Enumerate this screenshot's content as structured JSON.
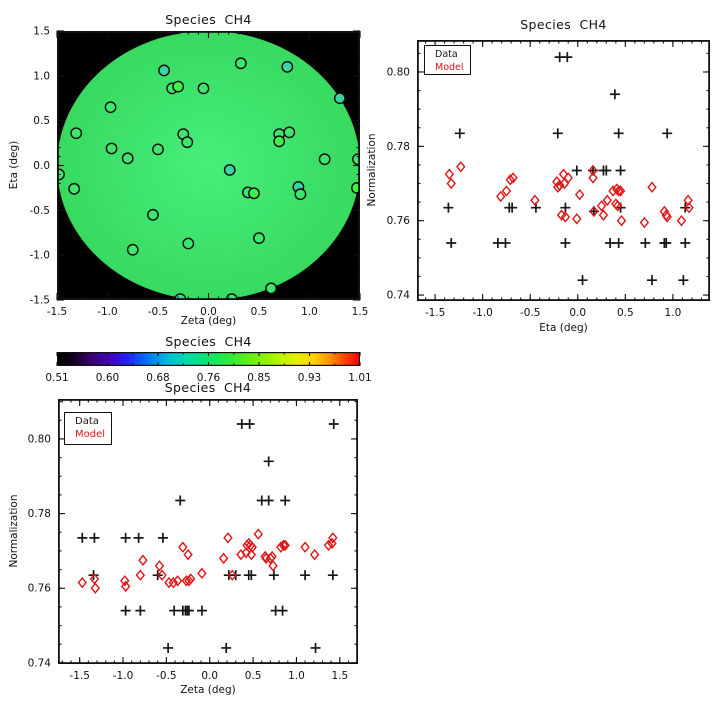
{
  "colors": {
    "axis": "#111111",
    "data_marker": "#161616",
    "model_marker": "#e01414",
    "disk_bg": "#000000",
    "bg": "#3fe56c",
    "teal": "#3cd3a8",
    "bright": "#41f148",
    "disk_inner": "#47ee7a",
    "disk_outer": "#38da60"
  },
  "chart_data": [
    {
      "id": "disk-map",
      "type": "disk_map",
      "title": "Species CH4",
      "xlabel": "Zeta (deg)",
      "ylabel": "Eta (deg)",
      "xlim": [
        -1.5,
        1.5
      ],
      "ylim": [
        -1.5,
        1.5
      ],
      "xticks": {
        "vals": [
          -1.5,
          -1,
          -0.5,
          0,
          0.5,
          1,
          1.5
        ],
        "labels": [
          "-1.5",
          "-1.0",
          "-0.5",
          "0.0",
          "0.5",
          "1.0",
          "1.5"
        ],
        "minor": 0.1
      },
      "yticks": {
        "vals": [
          -1.5,
          -1,
          -0.5,
          0,
          0.5,
          1,
          1.5
        ],
        "labels": [
          "-1.5",
          "-1.0",
          "-0.5",
          "0.0",
          "0.5",
          "1.0",
          "1.5"
        ],
        "minor": 0.1
      },
      "grid": false,
      "disk": {
        "radius": 1.5,
        "inner": "#47ee7a",
        "outer": "#38da60"
      },
      "points": [
        {
          "x": -0.44,
          "y": 1.06,
          "c": "teal"
        },
        {
          "x": -0.36,
          "y": 0.86,
          "c": "bg"
        },
        {
          "x": -0.3,
          "y": 0.88,
          "c": "bright"
        },
        {
          "x": -0.05,
          "y": 0.86,
          "c": "bg"
        },
        {
          "x": 0.32,
          "y": 1.14,
          "c": "bg"
        },
        {
          "x": 0.78,
          "y": 1.1,
          "c": "teal"
        },
        {
          "x": 1.3,
          "y": 0.75,
          "c": "teal"
        },
        {
          "x": -0.97,
          "y": 0.65,
          "c": "bg"
        },
        {
          "x": -1.31,
          "y": 0.36,
          "c": "bg"
        },
        {
          "x": -0.96,
          "y": 0.19,
          "c": "bg"
        },
        {
          "x": -0.8,
          "y": 0.08,
          "c": "bg"
        },
        {
          "x": -0.5,
          "y": 0.18,
          "c": "bg"
        },
        {
          "x": -0.25,
          "y": 0.35,
          "c": "bg"
        },
        {
          "x": -0.21,
          "y": 0.26,
          "c": "bg"
        },
        {
          "x": 0.7,
          "y": 0.35,
          "c": "bg"
        },
        {
          "x": 0.8,
          "y": 0.37,
          "c": "bg"
        },
        {
          "x": 0.7,
          "y": 0.27,
          "c": "bright"
        },
        {
          "x": 1.15,
          "y": 0.07,
          "c": "bg"
        },
        {
          "x": 1.48,
          "y": 0.07,
          "c": "bg"
        },
        {
          "x": -1.48,
          "y": -0.1,
          "c": "bg"
        },
        {
          "x": -1.33,
          "y": -0.26,
          "c": "bg"
        },
        {
          "x": 0.21,
          "y": -0.05,
          "c": "teal"
        },
        {
          "x": 0.39,
          "y": -0.3,
          "c": "bg"
        },
        {
          "x": 0.45,
          "y": -0.31,
          "c": "bright"
        },
        {
          "x": 0.89,
          "y": -0.24,
          "c": "teal"
        },
        {
          "x": 0.91,
          "y": -0.32,
          "c": "bg"
        },
        {
          "x": 1.47,
          "y": -0.25,
          "c": "bright"
        },
        {
          "x": -0.55,
          "y": -0.55,
          "c": "bg"
        },
        {
          "x": -0.2,
          "y": -0.87,
          "c": "bg"
        },
        {
          "x": -0.75,
          "y": -0.94,
          "c": "bg"
        },
        {
          "x": 0.5,
          "y": -0.81,
          "c": "bg"
        },
        {
          "x": 0.62,
          "y": -1.37,
          "c": "bg"
        },
        {
          "x": -0.28,
          "y": -1.49,
          "c": "teal"
        },
        {
          "x": 0.23,
          "y": -1.49,
          "c": "bg"
        }
      ]
    },
    {
      "id": "norm-vs-eta",
      "type": "scatter",
      "title": "Species CH4",
      "xlabel": "Eta (deg)",
      "ylabel": "Normalization",
      "xlim": [
        -1.69,
        1.39
      ],
      "ylim": [
        0.7384,
        0.8086
      ],
      "xticks": {
        "vals": [
          -1.5,
          -1,
          -0.5,
          0,
          0.5,
          1
        ],
        "labels": [
          "-1.5",
          "-1.0",
          "-0.5",
          "0.0",
          "0.5",
          "1.0"
        ],
        "minor": 0.1
      },
      "yticks": {
        "vals": [
          0.74,
          0.76,
          0.78,
          0.8
        ],
        "labels": [
          "0.74",
          "0.76",
          "0.78",
          "0.80"
        ],
        "minor": 0.005
      },
      "legend": {
        "data": "Data",
        "model": "Model"
      },
      "series": [
        {
          "name": "Data",
          "marker": "plus",
          "color": "#161616",
          "points": [
            [
              -0.19,
              0.804
            ],
            [
              -0.11,
              0.804
            ],
            [
              0.39,
              0.794
            ],
            [
              -1.24,
              0.7835
            ],
            [
              -0.21,
              0.7835
            ],
            [
              0.43,
              0.7835
            ],
            [
              0.94,
              0.7835
            ],
            [
              -0.01,
              0.7735
            ],
            [
              0.16,
              0.7735
            ],
            [
              0.27,
              0.7735
            ],
            [
              0.3,
              0.7735
            ],
            [
              0.45,
              0.7735
            ],
            [
              -1.36,
              0.7635
            ],
            [
              -0.72,
              0.7635
            ],
            [
              -0.69,
              0.7635
            ],
            [
              -0.44,
              0.7635
            ],
            [
              -0.13,
              0.7635
            ],
            [
              0.17,
              0.7625
            ],
            [
              0.45,
              0.7635
            ],
            [
              1.13,
              0.7635
            ],
            [
              -1.33,
              0.754
            ],
            [
              -0.84,
              0.754
            ],
            [
              -0.76,
              0.754
            ],
            [
              -0.13,
              0.754
            ],
            [
              0.34,
              0.754
            ],
            [
              0.43,
              0.754
            ],
            [
              0.71,
              0.754
            ],
            [
              0.91,
              0.754
            ],
            [
              0.93,
              0.754
            ],
            [
              1.13,
              0.754
            ],
            [
              0.05,
              0.744
            ],
            [
              0.78,
              0.744
            ],
            [
              1.11,
              0.744
            ]
          ]
        },
        {
          "name": "Model",
          "marker": "diamond",
          "color": "#e01414",
          "points": [
            [
              -1.35,
              0.7725
            ],
            [
              -1.23,
              0.7745
            ],
            [
              -1.33,
              0.77
            ],
            [
              -0.81,
              0.7665
            ],
            [
              -0.75,
              0.768
            ],
            [
              -0.71,
              0.771
            ],
            [
              -0.68,
              0.7715
            ],
            [
              -0.45,
              0.7655
            ],
            [
              -0.22,
              0.7705
            ],
            [
              -0.21,
              0.769
            ],
            [
              -0.19,
              0.7695
            ],
            [
              -0.15,
              0.7725
            ],
            [
              -0.14,
              0.77
            ],
            [
              -0.1,
              0.7715
            ],
            [
              -0.17,
              0.7615
            ],
            [
              -0.13,
              0.761
            ],
            [
              0.02,
              0.767
            ],
            [
              -0.01,
              0.7605
            ],
            [
              0.16,
              0.7735
            ],
            [
              0.16,
              0.7715
            ],
            [
              0.17,
              0.7625
            ],
            [
              0.25,
              0.764
            ],
            [
              0.27,
              0.7615
            ],
            [
              0.31,
              0.7655
            ],
            [
              0.37,
              0.768
            ],
            [
              0.41,
              0.7685
            ],
            [
              0.43,
              0.768
            ],
            [
              0.45,
              0.768
            ],
            [
              0.4,
              0.7645
            ],
            [
              0.42,
              0.764
            ],
            [
              0.46,
              0.76
            ],
            [
              0.7,
              0.7595
            ],
            [
              0.78,
              0.769
            ],
            [
              0.91,
              0.7625
            ],
            [
              0.93,
              0.7615
            ],
            [
              0.94,
              0.761
            ],
            [
              1.09,
              0.76
            ],
            [
              1.16,
              0.7655
            ],
            [
              1.17,
              0.7635
            ]
          ]
        }
      ]
    },
    {
      "id": "colorbar",
      "type": "colorbar",
      "title": "Species CH4",
      "tick_labels": [
        "0.51",
        "0.60",
        "0.68",
        "0.76",
        "0.85",
        "0.93",
        "1.01"
      ],
      "range": [
        0.51,
        1.01
      ],
      "stops": [
        [
          0,
          "#000000"
        ],
        [
          0.05,
          "#10001e"
        ],
        [
          0.11,
          "#38006e"
        ],
        [
          0.17,
          "#4400bb"
        ],
        [
          0.23,
          "#2222ee"
        ],
        [
          0.3,
          "#0077f0"
        ],
        [
          0.37,
          "#00c0d8"
        ],
        [
          0.44,
          "#00dca0"
        ],
        [
          0.51,
          "#12e464"
        ],
        [
          0.58,
          "#38ea36"
        ],
        [
          0.65,
          "#70ef12"
        ],
        [
          0.72,
          "#abf300"
        ],
        [
          0.79,
          "#e6ef00"
        ],
        [
          0.85,
          "#ffcf00"
        ],
        [
          0.9,
          "#ff9100"
        ],
        [
          0.95,
          "#ff4200"
        ],
        [
          1,
          "#fb0000"
        ]
      ]
    },
    {
      "id": "norm-vs-zeta",
      "type": "scatter",
      "title": "Species CH4",
      "xlabel": "Zeta (deg)",
      "ylabel": "Normalization",
      "xlim": [
        -1.75,
        1.71
      ],
      "ylim": [
        0.7397,
        0.8107
      ],
      "xticks": {
        "vals": [
          -1.5,
          -1,
          -0.5,
          0,
          0.5,
          1,
          1.5
        ],
        "labels": [
          "-1.5",
          "-1.0",
          "-0.5",
          "0.0",
          "0.5",
          "1.0",
          "1.5"
        ],
        "minor": 0.1
      },
      "yticks": {
        "vals": [
          0.74,
          0.76,
          0.78,
          0.8
        ],
        "labels": [
          "0.74",
          "0.76",
          "0.78",
          "0.80"
        ],
        "minor": 0.005
      },
      "legend": {
        "data": "Data",
        "model": "Model"
      },
      "series": [
        {
          "name": "Data",
          "marker": "plus",
          "color": "#161616",
          "points": [
            [
              0.37,
              0.804
            ],
            [
              0.46,
              0.804
            ],
            [
              1.43,
              0.804
            ],
            [
              0.68,
              0.794
            ],
            [
              -0.34,
              0.7835
            ],
            [
              0.6,
              0.7835
            ],
            [
              0.68,
              0.7835
            ],
            [
              0.87,
              0.7835
            ],
            [
              -1.47,
              0.7735
            ],
            [
              -1.33,
              0.7735
            ],
            [
              -0.97,
              0.7735
            ],
            [
              -0.82,
              0.7735
            ],
            [
              -0.54,
              0.7735
            ],
            [
              -1.34,
              0.7635
            ],
            [
              -0.6,
              0.7635
            ],
            [
              0.22,
              0.7635
            ],
            [
              0.3,
              0.7635
            ],
            [
              0.45,
              0.7635
            ],
            [
              0.48,
              0.7635
            ],
            [
              0.74,
              0.7635
            ],
            [
              1.1,
              0.7635
            ],
            [
              1.42,
              0.7635
            ],
            [
              -0.97,
              0.754
            ],
            [
              -0.8,
              0.754
            ],
            [
              -0.41,
              0.754
            ],
            [
              -0.31,
              0.754
            ],
            [
              -0.28,
              0.754
            ],
            [
              -0.26,
              0.754
            ],
            [
              -0.24,
              0.754
            ],
            [
              -0.09,
              0.754
            ],
            [
              0.76,
              0.754
            ],
            [
              0.84,
              0.754
            ],
            [
              -0.48,
              0.744
            ],
            [
              0.19,
              0.744
            ],
            [
              1.22,
              0.744
            ]
          ]
        },
        {
          "name": "Model",
          "marker": "diamond",
          "color": "#e01414",
          "points": [
            [
              -1.47,
              0.7615
            ],
            [
              -1.33,
              0.7625
            ],
            [
              -1.32,
              0.76
            ],
            [
              -0.98,
              0.762
            ],
            [
              -0.97,
              0.7605
            ],
            [
              -0.8,
              0.7635
            ],
            [
              -0.77,
              0.7675
            ],
            [
              -0.58,
              0.766
            ],
            [
              -0.55,
              0.7635
            ],
            [
              -0.47,
              0.7615
            ],
            [
              -0.42,
              0.7615
            ],
            [
              -0.37,
              0.762
            ],
            [
              -0.31,
              0.771
            ],
            [
              -0.25,
              0.769
            ],
            [
              -0.27,
              0.762
            ],
            [
              -0.24,
              0.762
            ],
            [
              -0.22,
              0.7625
            ],
            [
              -0.09,
              0.764
            ],
            [
              0.16,
              0.768
            ],
            [
              0.21,
              0.7735
            ],
            [
              0.26,
              0.7635
            ],
            [
              0.36,
              0.769
            ],
            [
              0.42,
              0.7695
            ],
            [
              0.43,
              0.7715
            ],
            [
              0.45,
              0.772
            ],
            [
              0.47,
              0.7715
            ],
            [
              0.49,
              0.771
            ],
            [
              0.48,
              0.769
            ],
            [
              0.56,
              0.7745
            ],
            [
              0.64,
              0.7685
            ],
            [
              0.65,
              0.768
            ],
            [
              0.7,
              0.768
            ],
            [
              0.72,
              0.7685
            ],
            [
              0.73,
              0.766
            ],
            [
              0.82,
              0.771
            ],
            [
              0.85,
              0.7715
            ],
            [
              0.87,
              0.7715
            ],
            [
              1.1,
              0.771
            ],
            [
              1.21,
              0.769
            ],
            [
              1.37,
              0.7715
            ],
            [
              1.41,
              0.772
            ],
            [
              1.42,
              0.7735
            ]
          ]
        }
      ]
    }
  ]
}
